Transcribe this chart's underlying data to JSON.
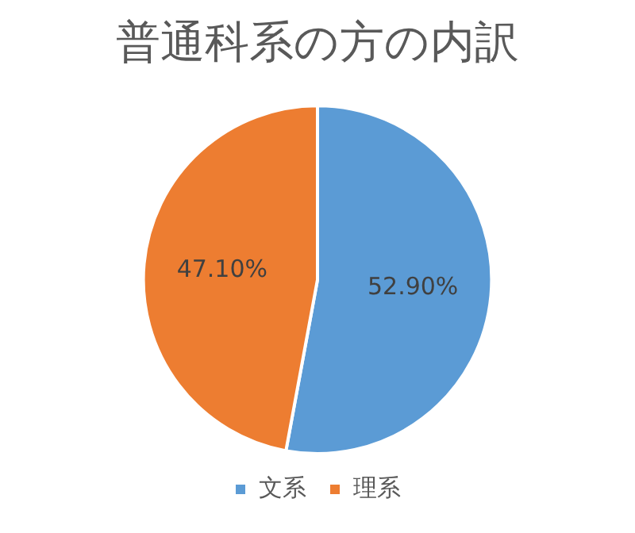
{
  "chart_data": {
    "type": "pie",
    "title": "普通科系の方の内訳",
    "categories": [
      "文系",
      "理系"
    ],
    "values": [
      52.9,
      47.1
    ],
    "colors": [
      "#5b9bd5",
      "#ed7d31"
    ],
    "value_labels": [
      "52.90%",
      "47.10%"
    ],
    "legend": "bottom"
  }
}
